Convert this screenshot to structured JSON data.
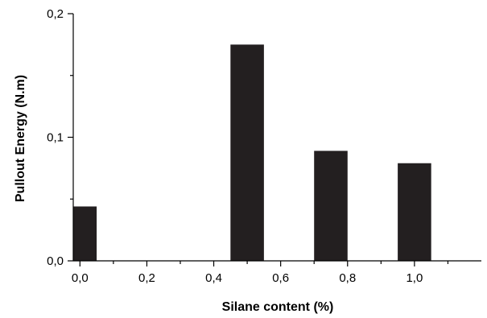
{
  "chart_data": {
    "type": "bar",
    "title": "",
    "xlabel": "Silane content (%)",
    "ylabel": "Pullout Energy (N.m)",
    "x": [
      0.0,
      0.5,
      0.75,
      1.0
    ],
    "values": [
      0.044,
      0.175,
      0.089,
      0.079
    ],
    "bar_width": 0.1,
    "xlim": [
      -0.02,
      1.2
    ],
    "ylim": [
      0,
      0.2
    ],
    "x_ticks": [
      0.0,
      0.2,
      0.4,
      0.6,
      0.8,
      1.0
    ],
    "x_tick_labels": [
      "0,0",
      "0,2",
      "0,4",
      "0,6",
      "0,8",
      "1,0"
    ],
    "y_ticks": [
      0.0,
      0.1,
      0.2
    ],
    "y_tick_labels": [
      "0,0",
      "0,1",
      "0,2"
    ],
    "bar_color": "#231f20",
    "grid": false,
    "legend": false
  }
}
